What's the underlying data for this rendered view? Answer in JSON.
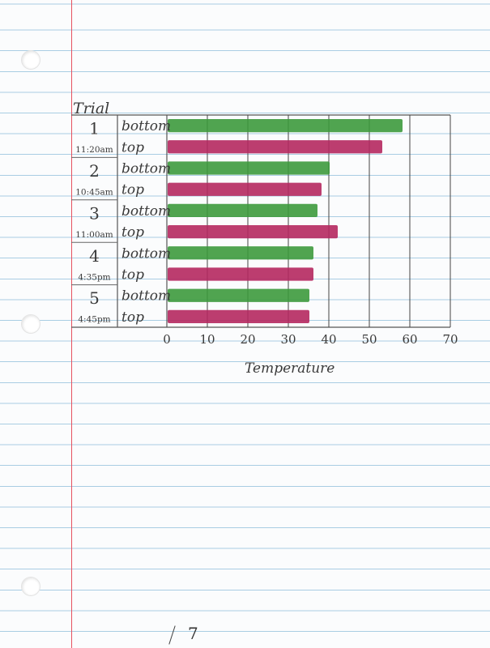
{
  "chart_data": {
    "type": "bar",
    "orientation": "horizontal",
    "title": "",
    "row_header": "Trial",
    "xlabel": "Temperature",
    "xlim": [
      0,
      70
    ],
    "x_ticks": [
      0,
      10,
      20,
      30,
      40,
      50,
      60,
      70
    ],
    "grid": true,
    "trials": [
      {
        "trial": "1",
        "time": "11:20am"
      },
      {
        "trial": "2",
        "time": "10:45am"
      },
      {
        "trial": "3",
        "time": "11:00am"
      },
      {
        "trial": "4",
        "time": "4:35pm"
      },
      {
        "trial": "5",
        "time": "4:45pm"
      }
    ],
    "bars": [
      {
        "trial": "1",
        "position": "bottom",
        "value": 58
      },
      {
        "trial": "1",
        "position": "top",
        "value": 53
      },
      {
        "trial": "2",
        "position": "bottom",
        "value": 40
      },
      {
        "trial": "2",
        "position": "top",
        "value": 38
      },
      {
        "trial": "3",
        "position": "bottom",
        "value": 37
      },
      {
        "trial": "3",
        "position": "top",
        "value": 42
      },
      {
        "trial": "4",
        "position": "bottom",
        "value": 36
      },
      {
        "trial": "4",
        "position": "top",
        "value": 36
      },
      {
        "trial": "5",
        "position": "bottom",
        "value": 35
      },
      {
        "trial": "5",
        "position": "top",
        "value": 35
      }
    ],
    "colors": {
      "bottom": "#3d9a3d",
      "top": "#b5285f"
    }
  },
  "page_number": "7"
}
